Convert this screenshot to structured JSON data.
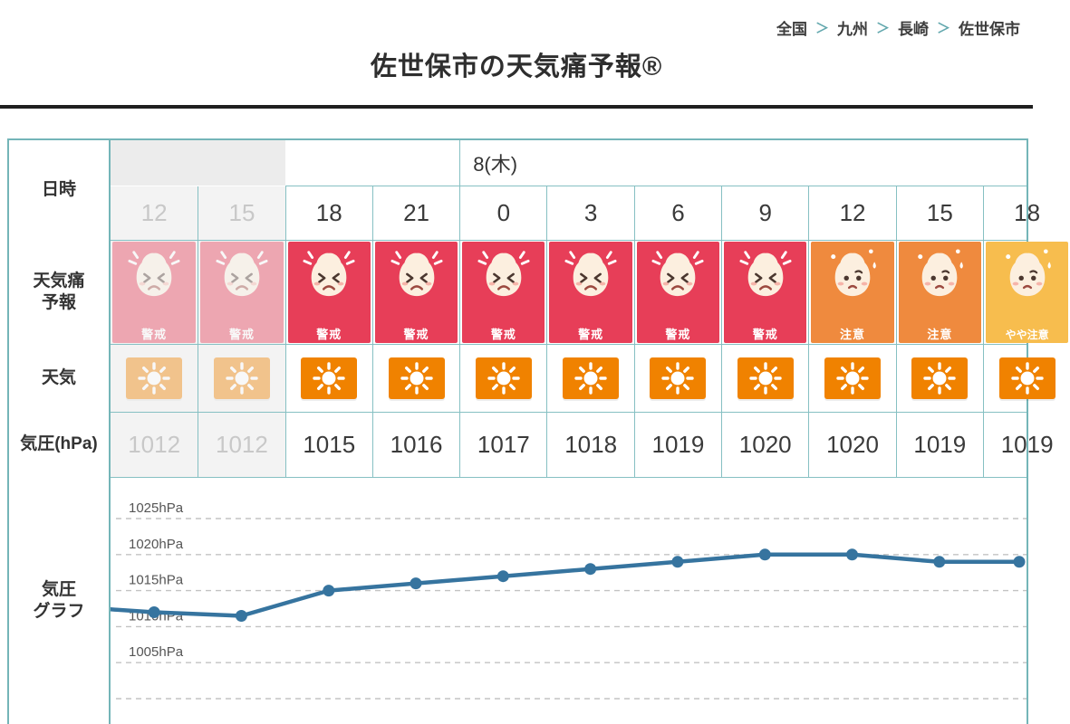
{
  "breadcrumb": {
    "separator": "＞",
    "items": [
      "全国",
      "九州",
      "長崎",
      "佐世保市"
    ]
  },
  "title": "佐世保市の天気痛予報®",
  "table": {
    "labels": {
      "datetime": "日時",
      "pain_line1": "天気痛",
      "pain_line2": "予報",
      "weather": "天気",
      "pressure": "気圧(hPa)",
      "graph_line1": "気圧",
      "graph_line2": "グラフ"
    },
    "day_header": {
      "label": "8(木)",
      "start_col": 4
    },
    "levels": {
      "alert": {
        "label": "警戒",
        "color": "#e73e58",
        "face": "alert"
      },
      "caution": {
        "label": "注意",
        "color": "#ef8a3e",
        "face": "caution"
      },
      "mild": {
        "label": "やや注意",
        "color": "#f7bd4e",
        "face": "caution"
      }
    },
    "columns": [
      {
        "hour": "12",
        "past": true,
        "level": "alert",
        "weather": "sunny",
        "pressure": "1012"
      },
      {
        "hour": "15",
        "past": true,
        "level": "alert",
        "weather": "sunny",
        "pressure": "1012"
      },
      {
        "hour": "18",
        "past": false,
        "level": "alert",
        "weather": "sunny",
        "pressure": "1015"
      },
      {
        "hour": "21",
        "past": false,
        "level": "alert",
        "weather": "sunny",
        "pressure": "1016"
      },
      {
        "hour": "0",
        "past": false,
        "level": "alert",
        "weather": "sunny",
        "pressure": "1017"
      },
      {
        "hour": "3",
        "past": false,
        "level": "alert",
        "weather": "sunny",
        "pressure": "1018"
      },
      {
        "hour": "6",
        "past": false,
        "level": "alert",
        "weather": "sunny",
        "pressure": "1019"
      },
      {
        "hour": "9",
        "past": false,
        "level": "alert",
        "weather": "sunny",
        "pressure": "1020"
      },
      {
        "hour": "12",
        "past": false,
        "level": "caution",
        "weather": "sunny",
        "pressure": "1020"
      },
      {
        "hour": "15",
        "past": false,
        "level": "caution",
        "weather": "sunny",
        "pressure": "1019"
      },
      {
        "hour": "18",
        "past": false,
        "level": "mild",
        "weather": "sunny",
        "pressure": "1019"
      }
    ]
  },
  "chart_data": {
    "type": "line",
    "title": "気圧グラフ",
    "unit": "hPa",
    "x_hours": [
      "12",
      "15",
      "18",
      "21",
      "0",
      "3",
      "6",
      "9",
      "12",
      "15",
      "18"
    ],
    "values": [
      1012,
      1011.5,
      1015,
      1016,
      1017,
      1018,
      1019,
      1020,
      1020,
      1019,
      1019
    ],
    "edge_start_value": 1012.4,
    "gridlines": [
      {
        "value": 1025,
        "label": "1025hPa"
      },
      {
        "value": 1020,
        "label": "1020hPa"
      },
      {
        "value": 1015,
        "label": "1015hPa"
      },
      {
        "value": 1010,
        "label": "1010hPa"
      },
      {
        "value": 1005,
        "label": "1005hPa"
      },
      {
        "value": 1000,
        "label": ""
      }
    ],
    "ylim": [
      998,
      1027
    ],
    "grid": "dashed",
    "legend": "none",
    "line_color": "#36749f"
  },
  "colors": {
    "table_border": "#74b5b8",
    "alert_red": "#e73e58",
    "caution_orange": "#ef8a3e",
    "mild_yellow": "#f7bd4e",
    "sun_orange": "#f08200",
    "line_blue": "#36749f",
    "past_text": "#c8c8c8",
    "past_bg": "#f3f3f3"
  }
}
